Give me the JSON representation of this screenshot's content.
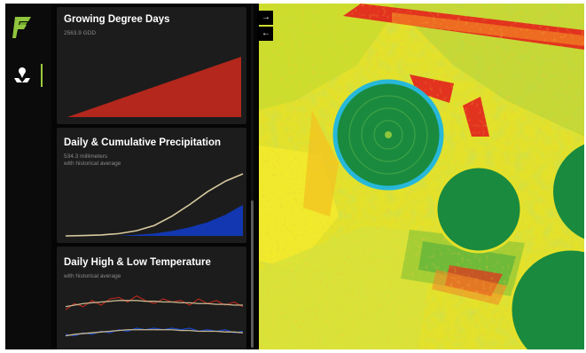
{
  "app": {
    "logo_icon": "farm-logo-icon",
    "nav": [
      {
        "name": "field-pin-icon",
        "active": true
      }
    ],
    "toggles": [
      {
        "name": "expand-map-icon",
        "glyph": "→"
      },
      {
        "name": "collapse-map-icon",
        "glyph": "←"
      }
    ]
  },
  "cards": {
    "gdd": {
      "title": "Growing Degree Days",
      "subtitle": "2563.9 GDD",
      "color": "#b3271c"
    },
    "precip": {
      "title": "Daily & Cumulative Precipitation",
      "subtitle": "534.3 millimeters",
      "subtitle2": "with historical average",
      "cumulative_color": "#d8caa0",
      "daily_color": "#1237b0"
    },
    "temp": {
      "title": "Daily High & Low Temperature",
      "subtitle": "with historical average",
      "high_color": "#b3271c",
      "low_color": "#1a45c8",
      "avg_color": "#c6b890"
    }
  },
  "chart_data": [
    {
      "type": "area",
      "title": "Growing Degree Days",
      "x": [
        0,
        1
      ],
      "series": [
        {
          "values": [
            0,
            2563.9
          ]
        }
      ]
    },
    {
      "type": "area",
      "title": "Daily & Cumulative Precipitation",
      "x": [
        0,
        0.1,
        0.2,
        0.3,
        0.4,
        0.5,
        0.6,
        0.7,
        0.8,
        0.9,
        1.0
      ],
      "series": [
        {
          "values": [
            0,
            3,
            8,
            20,
            45,
            90,
            170,
            270,
            380,
            470,
            534.3
          ]
        },
        {
          "values": [
            0,
            0,
            0,
            0,
            1,
            2,
            4,
            7,
            11,
            17,
            25
          ]
        }
      ]
    },
    {
      "type": "line",
      "title": "Daily High & Low Temperature",
      "x": [
        0,
        0.05,
        0.1,
        0.15,
        0.2,
        0.25,
        0.3,
        0.35,
        0.4,
        0.45,
        0.5,
        0.55,
        0.6,
        0.65,
        0.7,
        0.75,
        0.8,
        0.85,
        0.9,
        0.95,
        1.0
      ],
      "series": [
        {
          "values": [
            27,
            31,
            29,
            33,
            30,
            34,
            35,
            32,
            36,
            33,
            31,
            34,
            32,
            33,
            30,
            34,
            31,
            33,
            30,
            32,
            29
          ]
        },
        {
          "values": [
            11,
            10,
            12,
            11,
            13,
            12,
            14,
            13,
            15,
            14,
            15,
            14,
            15,
            14,
            15,
            13,
            14,
            13,
            14,
            12,
            13
          ]
        },
        {
          "values": [
            29,
            30,
            31,
            31.5,
            32,
            32.5,
            33,
            33,
            33,
            32.5,
            32.5,
            32,
            32,
            31.5,
            31.5,
            31,
            31,
            30.5,
            30.5,
            30,
            30
          ]
        },
        {
          "values": [
            10,
            11,
            11.5,
            12,
            12.5,
            13,
            13.5,
            14,
            14,
            14,
            14,
            14,
            14,
            13.5,
            13.5,
            13,
            13,
            13,
            12.5,
            12.5,
            12
          ]
        }
      ]
    }
  ]
}
